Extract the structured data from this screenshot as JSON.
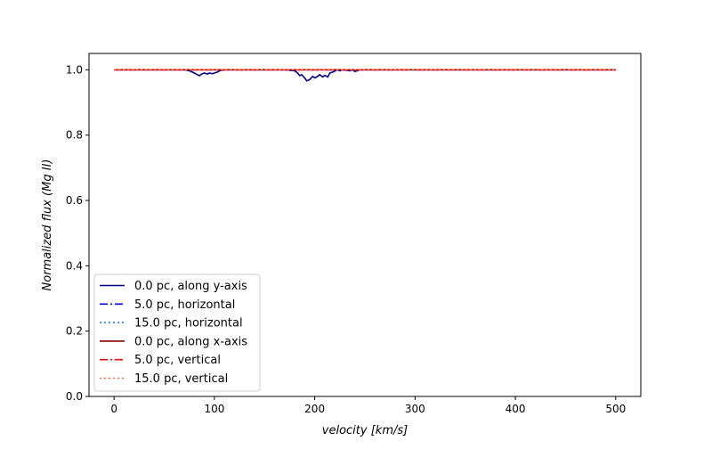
{
  "chart_data": {
    "type": "line",
    "title": "",
    "xlabel": "velocity [km/s]",
    "ylabel": "Normalized flux (Mg II)",
    "xlim": [
      -25,
      525
    ],
    "ylim": [
      0.0,
      1.05
    ],
    "xticks": [
      0,
      100,
      200,
      300,
      400,
      500
    ],
    "yticks": [
      0.0,
      0.2,
      0.4,
      0.6,
      0.8,
      1.0
    ],
    "xtick_labels": [
      "0",
      "100",
      "200",
      "300",
      "400",
      "500"
    ],
    "ytick_labels": [
      "0.0",
      "0.2",
      "0.4",
      "0.6",
      "0.8",
      "1.0"
    ],
    "grid": false,
    "legend_position": "lower-left",
    "series": [
      {
        "name": "0.0 pc, along y-axis",
        "color": "#00008b",
        "style": "solid",
        "x": [
          0,
          60,
          70,
          75,
          78,
          80,
          83,
          85,
          88,
          90,
          93,
          95,
          98,
          100,
          103,
          105,
          110,
          170,
          180,
          183,
          185,
          187,
          190,
          192,
          195,
          198,
          200,
          203,
          205,
          208,
          210,
          213,
          215,
          218,
          220,
          222,
          225,
          228,
          230,
          235,
          238,
          240,
          242,
          245,
          250,
          300,
          400,
          500
        ],
        "y": [
          1.0,
          1.0,
          1.0,
          0.997,
          0.993,
          0.99,
          0.985,
          0.982,
          0.988,
          0.99,
          0.987,
          0.99,
          0.988,
          0.99,
          0.993,
          0.997,
          1.0,
          1.0,
          0.997,
          0.99,
          0.982,
          0.985,
          0.975,
          0.966,
          0.97,
          0.98,
          0.975,
          0.98,
          0.985,
          0.978,
          0.983,
          0.978,
          0.99,
          0.993,
          0.996,
          1.0,
          0.997,
          1.0,
          0.999,
          0.997,
          1.0,
          0.995,
          0.997,
          1.0,
          1.0,
          1.0,
          1.0,
          1.0
        ]
      },
      {
        "name": "5.0 pc, horizontal",
        "color": "#0000ff",
        "style": "dashdot",
        "x": [
          0,
          500
        ],
        "y": [
          1.0,
          1.0
        ]
      },
      {
        "name": "15.0 pc, horizontal",
        "color": "#1f77ff",
        "style": "dotted",
        "x": [
          0,
          500
        ],
        "y": [
          1.0,
          1.0
        ]
      },
      {
        "name": "0.0 pc, along x-axis",
        "color": "#8b0000",
        "style": "solid",
        "x": [
          0,
          500
        ],
        "y": [
          1.0,
          1.0
        ]
      },
      {
        "name": "5.0 pc, vertical",
        "color": "#ff0000",
        "style": "dashdot",
        "x": [
          0,
          500
        ],
        "y": [
          1.0,
          1.0
        ]
      },
      {
        "name": "15.0 pc, vertical",
        "color": "#ff6347",
        "style": "dotted",
        "x": [
          0,
          500
        ],
        "y": [
          1.0,
          1.0
        ]
      }
    ]
  }
}
